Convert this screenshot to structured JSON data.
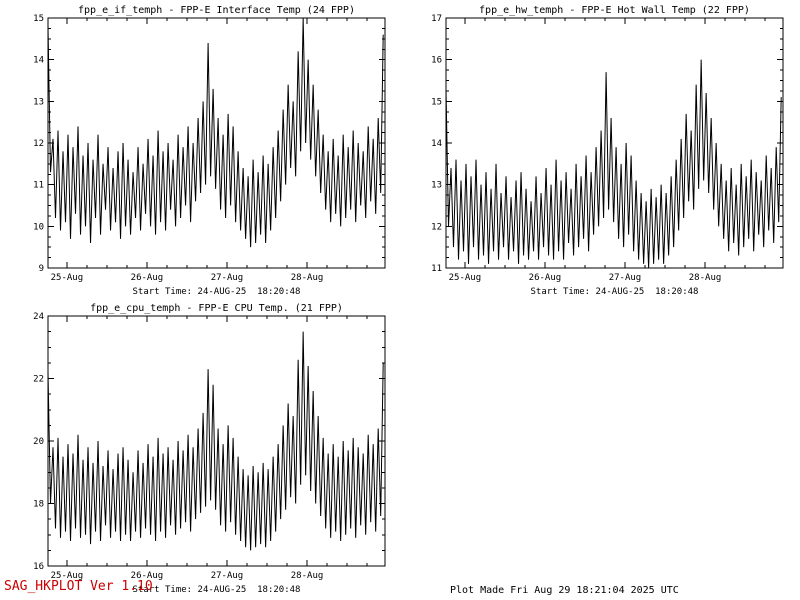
{
  "window": {
    "background": "#ffffff"
  },
  "footer": {
    "version_label": "SAG_HKPLOT  Ver 1.10",
    "plot_made_label": "Plot Made Fri Aug 29 18:21:04 2025 UTC"
  },
  "colors": {
    "line": "#000000",
    "text": "#000000",
    "version_text": "#cc0000",
    "background": "#ffffff"
  },
  "chart_data": [
    {
      "type": "line",
      "id": "fpp_e_if_temph",
      "title": "fpp_e_if_temph - FPP-E Interface Temp (24 FPP)",
      "start_time_label": "Start Time: 24-AUG-25  18:20:48",
      "ylabel": "",
      "xlabel": "",
      "ylim": [
        9,
        15
      ],
      "yticks": [
        9,
        10,
        11,
        12,
        13,
        14,
        15
      ],
      "y_minor_step": 0.25,
      "xlim": [
        0,
        4.21
      ],
      "xticks": [
        {
          "t": 0.236,
          "label": "25-Aug"
        },
        {
          "t": 1.236,
          "label": "26-Aug"
        },
        {
          "t": 2.236,
          "label": "27-Aug"
        },
        {
          "t": 3.236,
          "label": "28-Aug"
        }
      ],
      "x_minor_step": 0.25,
      "grid": false,
      "legend": false,
      "series": {
        "name": "fpp_e_if_temph",
        "t0": 0,
        "dt": 0.03125,
        "values": [
          14.8,
          11.3,
          12.1,
          10.2,
          12.3,
          9.9,
          11.8,
          10.1,
          12.2,
          9.7,
          11.9,
          10.3,
          12.4,
          9.8,
          11.7,
          10.0,
          12.0,
          9.6,
          11.6,
          10.2,
          12.2,
          9.8,
          11.5,
          10.4,
          11.9,
          9.9,
          11.4,
          10.1,
          11.8,
          9.7,
          12.0,
          10.0,
          11.6,
          9.8,
          11.3,
          10.2,
          11.9,
          9.9,
          11.5,
          10.3,
          12.1,
          10.0,
          11.7,
          9.8,
          12.3,
          10.1,
          11.8,
          9.9,
          12.0,
          10.4,
          11.6,
          10.0,
          12.2,
          10.2,
          11.9,
          10.5,
          12.4,
          10.1,
          12.0,
          10.6,
          12.6,
          10.8,
          13.0,
          11.0,
          14.4,
          11.2,
          13.3,
          10.9,
          12.6,
          10.4,
          12.2,
          10.2,
          12.7,
          10.5,
          12.4,
          10.1,
          11.8,
          9.9,
          11.4,
          9.7,
          11.2,
          9.5,
          11.6,
          9.6,
          11.3,
          9.8,
          11.7,
          9.6,
          11.5,
          9.9,
          11.9,
          10.2,
          12.3,
          10.6,
          12.8,
          11.0,
          13.4,
          11.4,
          13.0,
          11.2,
          14.2,
          11.8,
          15.0,
          12.0,
          14.0,
          11.6,
          13.4,
          11.2,
          12.8,
          10.8,
          12.2,
          10.4,
          11.8,
          10.1,
          12.1,
          10.3,
          11.7,
          10.0,
          12.2,
          10.2,
          11.9,
          10.4,
          12.3,
          10.1,
          12.0,
          10.5,
          11.8,
          10.2,
          12.4,
          10.6,
          12.1,
          10.3,
          12.6,
          10.8,
          14.6
        ]
      }
    },
    {
      "type": "line",
      "id": "fpp_e_hw_temph",
      "title": "fpp_e_hw_temph - FPP-E Hot Wall Temp (22 FPP)",
      "start_time_label": "Start Time: 24-AUG-25  18:20:48",
      "ylabel": "",
      "xlabel": "",
      "ylim": [
        11,
        17
      ],
      "yticks": [
        11,
        12,
        13,
        14,
        15,
        16,
        17
      ],
      "y_minor_step": 0.25,
      "xlim": [
        0,
        4.21
      ],
      "xticks": [
        {
          "t": 0.236,
          "label": "25-Aug"
        },
        {
          "t": 1.236,
          "label": "26-Aug"
        },
        {
          "t": 2.236,
          "label": "27-Aug"
        },
        {
          "t": 3.236,
          "label": "28-Aug"
        }
      ],
      "x_minor_step": 0.25,
      "grid": false,
      "legend": false,
      "series": {
        "name": "fpp_e_hw_temph",
        "t0": 0,
        "dt": 0.03125,
        "values": [
          15.3,
          12.0,
          13.4,
          11.5,
          13.6,
          11.2,
          13.1,
          11.4,
          13.5,
          11.1,
          13.2,
          11.5,
          13.6,
          11.2,
          13.0,
          11.3,
          13.3,
          11.1,
          12.9,
          11.4,
          13.5,
          11.2,
          12.8,
          11.5,
          13.2,
          11.2,
          12.7,
          11.4,
          13.1,
          11.1,
          13.3,
          11.3,
          12.9,
          11.2,
          12.6,
          11.4,
          13.2,
          11.2,
          12.8,
          11.5,
          13.4,
          11.3,
          13.0,
          11.2,
          13.6,
          11.4,
          13.1,
          11.2,
          13.3,
          11.6,
          12.9,
          11.3,
          13.5,
          11.5,
          13.2,
          11.7,
          13.7,
          11.4,
          13.3,
          11.8,
          13.9,
          12.0,
          14.3,
          12.2,
          15.7,
          12.4,
          14.6,
          12.1,
          13.9,
          11.7,
          13.5,
          11.5,
          14.0,
          11.8,
          13.7,
          11.4,
          13.1,
          11.2,
          12.8,
          11.1,
          12.6,
          11.0,
          12.9,
          11.1,
          12.7,
          11.2,
          13.0,
          11.1,
          12.8,
          11.3,
          13.2,
          11.5,
          13.6,
          11.9,
          14.1,
          12.2,
          14.7,
          12.6,
          14.3,
          12.4,
          15.4,
          12.9,
          16.0,
          13.1,
          15.2,
          12.8,
          14.6,
          12.4,
          14.0,
          12.0,
          13.5,
          11.7,
          13.1,
          11.4,
          13.4,
          11.6,
          13.0,
          11.3,
          13.5,
          11.5,
          13.2,
          11.7,
          13.6,
          11.4,
          13.3,
          11.8,
          13.1,
          11.5,
          13.7,
          11.9,
          13.4,
          11.6,
          13.9,
          12.1,
          15.1
        ]
      }
    },
    {
      "type": "line",
      "id": "fpp_e_cpu_temph",
      "title": "fpp_e_cpu_temph - FPP-E CPU Temp. (21 FPP)",
      "start_time_label": "Start Time: 24-AUG-25  18:20:48",
      "ylabel": "",
      "xlabel": "",
      "ylim": [
        16,
        24
      ],
      "yticks": [
        16,
        18,
        20,
        22,
        24
      ],
      "y_minor_step": 0.5,
      "xlim": [
        0,
        4.21
      ],
      "xticks": [
        {
          "t": 0.236,
          "label": "25-Aug"
        },
        {
          "t": 1.236,
          "label": "26-Aug"
        },
        {
          "t": 2.236,
          "label": "27-Aug"
        },
        {
          "t": 3.236,
          "label": "28-Aug"
        }
      ],
      "x_minor_step": 0.25,
      "grid": false,
      "legend": false,
      "series": {
        "name": "fpp_e_cpu_temph",
        "t0": 0,
        "dt": 0.03125,
        "values": [
          22.2,
          18.0,
          19.8,
          17.2,
          20.1,
          16.9,
          19.5,
          17.1,
          19.9,
          16.8,
          19.6,
          17.2,
          20.2,
          16.9,
          19.4,
          17.0,
          19.8,
          16.7,
          19.3,
          17.1,
          20.0,
          16.8,
          19.2,
          17.3,
          19.7,
          16.9,
          19.1,
          17.1,
          19.6,
          16.8,
          19.8,
          17.0,
          19.4,
          16.8,
          19.0,
          17.1,
          19.7,
          16.9,
          19.3,
          17.2,
          19.9,
          17.0,
          19.5,
          16.8,
          20.1,
          17.1,
          19.6,
          16.9,
          19.8,
          17.3,
          19.4,
          17.0,
          20.0,
          17.2,
          19.7,
          17.4,
          20.2,
          17.1,
          19.8,
          17.5,
          20.4,
          17.7,
          20.9,
          17.9,
          22.3,
          18.1,
          21.8,
          17.8,
          20.4,
          17.3,
          19.9,
          17.1,
          20.5,
          17.4,
          20.1,
          17.0,
          19.5,
          16.8,
          19.1,
          16.6,
          18.9,
          16.5,
          19.2,
          16.6,
          19.0,
          16.7,
          19.3,
          16.6,
          19.1,
          16.8,
          19.5,
          17.1,
          19.9,
          17.5,
          20.5,
          17.8,
          21.2,
          18.2,
          20.8,
          18.0,
          22.6,
          18.6,
          23.5,
          18.9,
          22.4,
          18.4,
          21.6,
          18.0,
          20.8,
          17.6,
          20.1,
          17.2,
          19.6,
          16.9,
          19.9,
          17.1,
          19.5,
          16.8,
          20.0,
          17.0,
          19.7,
          17.2,
          20.1,
          16.9,
          19.8,
          17.3,
          19.6,
          17.0,
          20.2,
          17.4,
          19.9,
          17.1,
          20.4,
          17.6,
          22.5
        ]
      }
    }
  ]
}
